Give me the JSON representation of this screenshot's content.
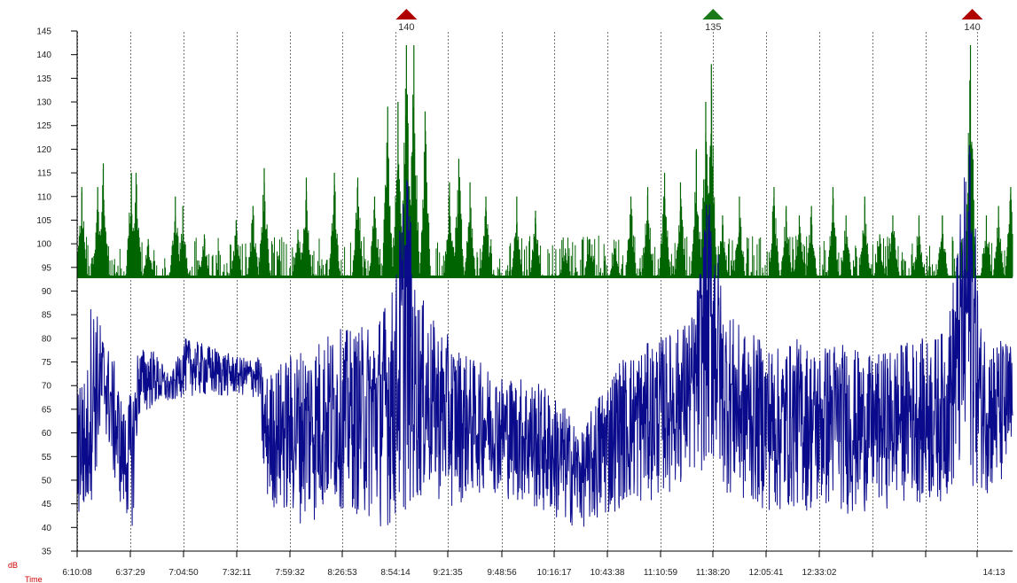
{
  "chart_data": {
    "type": "line",
    "ylabel": "dB",
    "xlabel": "Time",
    "ylim": [
      35,
      145
    ],
    "y_ticks": [
      35,
      40,
      45,
      50,
      55,
      60,
      65,
      70,
      75,
      80,
      85,
      90,
      95,
      100,
      105,
      110,
      115,
      120,
      125,
      130,
      135,
      140,
      145
    ],
    "x_tick_labels": [
      "6:10:08",
      "6:37:29",
      "7:04:50",
      "7:32:11",
      "7:59:32",
      "8:26:53",
      "8:54:14",
      "9:21:35",
      "9:48:56",
      "10:16:17",
      "10:43:38",
      "11:10:59",
      "11:38:20",
      "12:05:41",
      "12:33:02",
      "",
      "",
      "14:13"
    ],
    "grid": "vertical-dashed",
    "baseline_db": 93,
    "markers": [
      {
        "label": "140",
        "color": "#b00000",
        "direction": "up",
        "time_fraction": 0.352
      },
      {
        "label": "135",
        "color": "#1a7a1a",
        "direction": "up",
        "time_fraction": 0.678
      },
      {
        "label": "140",
        "color": "#b00000",
        "direction": "up",
        "time_fraction": 0.955
      }
    ],
    "series": [
      {
        "color": "#006400",
        "style": "peak-bars-above-baseline",
        "peaks": [
          {
            "t": 0.005,
            "v": 112
          },
          {
            "t": 0.022,
            "v": 112
          },
          {
            "t": 0.028,
            "v": 117
          },
          {
            "t": 0.058,
            "v": 115
          },
          {
            "t": 0.063,
            "v": 115
          },
          {
            "t": 0.076,
            "v": 101
          },
          {
            "t": 0.105,
            "v": 110
          },
          {
            "t": 0.113,
            "v": 108
          },
          {
            "t": 0.136,
            "v": 102
          },
          {
            "t": 0.17,
            "v": 105
          },
          {
            "t": 0.188,
            "v": 108
          },
          {
            "t": 0.2,
            "v": 116
          },
          {
            "t": 0.236,
            "v": 103
          },
          {
            "t": 0.245,
            "v": 114
          },
          {
            "t": 0.275,
            "v": 115
          },
          {
            "t": 0.3,
            "v": 114
          },
          {
            "t": 0.318,
            "v": 110
          },
          {
            "t": 0.332,
            "v": 129
          },
          {
            "t": 0.343,
            "v": 130
          },
          {
            "t": 0.352,
            "v": 142
          },
          {
            "t": 0.36,
            "v": 142
          },
          {
            "t": 0.372,
            "v": 128
          },
          {
            "t": 0.398,
            "v": 113
          },
          {
            "t": 0.408,
            "v": 118
          },
          {
            "t": 0.42,
            "v": 113
          },
          {
            "t": 0.437,
            "v": 110
          },
          {
            "t": 0.47,
            "v": 110
          },
          {
            "t": 0.49,
            "v": 107
          },
          {
            "t": 0.522,
            "v": 99
          },
          {
            "t": 0.548,
            "v": 101
          },
          {
            "t": 0.575,
            "v": 99
          },
          {
            "t": 0.592,
            "v": 110
          },
          {
            "t": 0.61,
            "v": 112
          },
          {
            "t": 0.628,
            "v": 115
          },
          {
            "t": 0.645,
            "v": 113
          },
          {
            "t": 0.662,
            "v": 120
          },
          {
            "t": 0.672,
            "v": 130
          },
          {
            "t": 0.678,
            "v": 138
          },
          {
            "t": 0.69,
            "v": 106
          },
          {
            "t": 0.708,
            "v": 110
          },
          {
            "t": 0.745,
            "v": 112
          },
          {
            "t": 0.758,
            "v": 108
          },
          {
            "t": 0.772,
            "v": 106
          },
          {
            "t": 0.785,
            "v": 108
          },
          {
            "t": 0.808,
            "v": 112
          },
          {
            "t": 0.822,
            "v": 106
          },
          {
            "t": 0.842,
            "v": 110
          },
          {
            "t": 0.858,
            "v": 102
          },
          {
            "t": 0.872,
            "v": 106
          },
          {
            "t": 0.9,
            "v": 106
          },
          {
            "t": 0.925,
            "v": 106
          },
          {
            "t": 0.955,
            "v": 142
          },
          {
            "t": 0.972,
            "v": 106
          },
          {
            "t": 0.985,
            "v": 108
          },
          {
            "t": 0.998,
            "v": 112
          }
        ]
      },
      {
        "color": "#0a0a8c",
        "style": "noise-line",
        "envelope": [
          {
            "t": 0.0,
            "low": 40,
            "high": 78
          },
          {
            "t": 0.01,
            "low": 40,
            "high": 70
          },
          {
            "t": 0.015,
            "low": 45,
            "high": 90
          },
          {
            "t": 0.03,
            "low": 60,
            "high": 80
          },
          {
            "t": 0.04,
            "low": 48,
            "high": 75
          },
          {
            "t": 0.05,
            "low": 42,
            "high": 65
          },
          {
            "t": 0.06,
            "low": 40,
            "high": 70
          },
          {
            "t": 0.065,
            "low": 62,
            "high": 78
          },
          {
            "t": 0.08,
            "low": 65,
            "high": 78
          },
          {
            "t": 0.1,
            "low": 66,
            "high": 72
          },
          {
            "t": 0.115,
            "low": 68,
            "high": 80
          },
          {
            "t": 0.15,
            "low": 67,
            "high": 78
          },
          {
            "t": 0.17,
            "low": 68,
            "high": 76
          },
          {
            "t": 0.195,
            "low": 67,
            "high": 76
          },
          {
            "t": 0.2,
            "low": 45,
            "high": 72
          },
          {
            "t": 0.222,
            "low": 42,
            "high": 76
          },
          {
            "t": 0.25,
            "low": 40,
            "high": 80
          },
          {
            "t": 0.28,
            "low": 44,
            "high": 82
          },
          {
            "t": 0.3,
            "low": 42,
            "high": 82
          },
          {
            "t": 0.32,
            "low": 40,
            "high": 85
          },
          {
            "t": 0.34,
            "low": 40,
            "high": 92
          },
          {
            "t": 0.352,
            "low": 42,
            "high": 123
          },
          {
            "t": 0.36,
            "low": 44,
            "high": 92
          },
          {
            "t": 0.38,
            "low": 46,
            "high": 84
          },
          {
            "t": 0.4,
            "low": 44,
            "high": 80
          },
          {
            "t": 0.42,
            "low": 46,
            "high": 76
          },
          {
            "t": 0.44,
            "low": 48,
            "high": 74
          },
          {
            "t": 0.46,
            "low": 46,
            "high": 72
          },
          {
            "t": 0.48,
            "low": 44,
            "high": 72
          },
          {
            "t": 0.5,
            "low": 42,
            "high": 70
          },
          {
            "t": 0.52,
            "low": 40,
            "high": 66
          },
          {
            "t": 0.54,
            "low": 40,
            "high": 60
          },
          {
            "t": 0.56,
            "low": 40,
            "high": 70
          },
          {
            "t": 0.58,
            "low": 44,
            "high": 76
          },
          {
            "t": 0.6,
            "low": 44,
            "high": 78
          },
          {
            "t": 0.62,
            "low": 46,
            "high": 80
          },
          {
            "t": 0.64,
            "low": 48,
            "high": 82
          },
          {
            "t": 0.66,
            "low": 50,
            "high": 86
          },
          {
            "t": 0.672,
            "low": 52,
            "high": 108
          },
          {
            "t": 0.68,
            "low": 50,
            "high": 112
          },
          {
            "t": 0.69,
            "low": 48,
            "high": 88
          },
          {
            "t": 0.71,
            "low": 44,
            "high": 82
          },
          {
            "t": 0.73,
            "low": 44,
            "high": 80
          },
          {
            "t": 0.75,
            "low": 42,
            "high": 78
          },
          {
            "t": 0.77,
            "low": 44,
            "high": 80
          },
          {
            "t": 0.79,
            "low": 42,
            "high": 78
          },
          {
            "t": 0.81,
            "low": 44,
            "high": 80
          },
          {
            "t": 0.83,
            "low": 42,
            "high": 78
          },
          {
            "t": 0.85,
            "low": 44,
            "high": 76
          },
          {
            "t": 0.87,
            "low": 44,
            "high": 78
          },
          {
            "t": 0.89,
            "low": 46,
            "high": 80
          },
          {
            "t": 0.91,
            "low": 44,
            "high": 80
          },
          {
            "t": 0.93,
            "low": 46,
            "high": 82
          },
          {
            "t": 0.955,
            "low": 48,
            "high": 126
          },
          {
            "t": 0.965,
            "low": 48,
            "high": 84
          },
          {
            "t": 0.98,
            "low": 46,
            "high": 80
          },
          {
            "t": 1.0,
            "low": 48,
            "high": 80
          }
        ]
      }
    ]
  }
}
